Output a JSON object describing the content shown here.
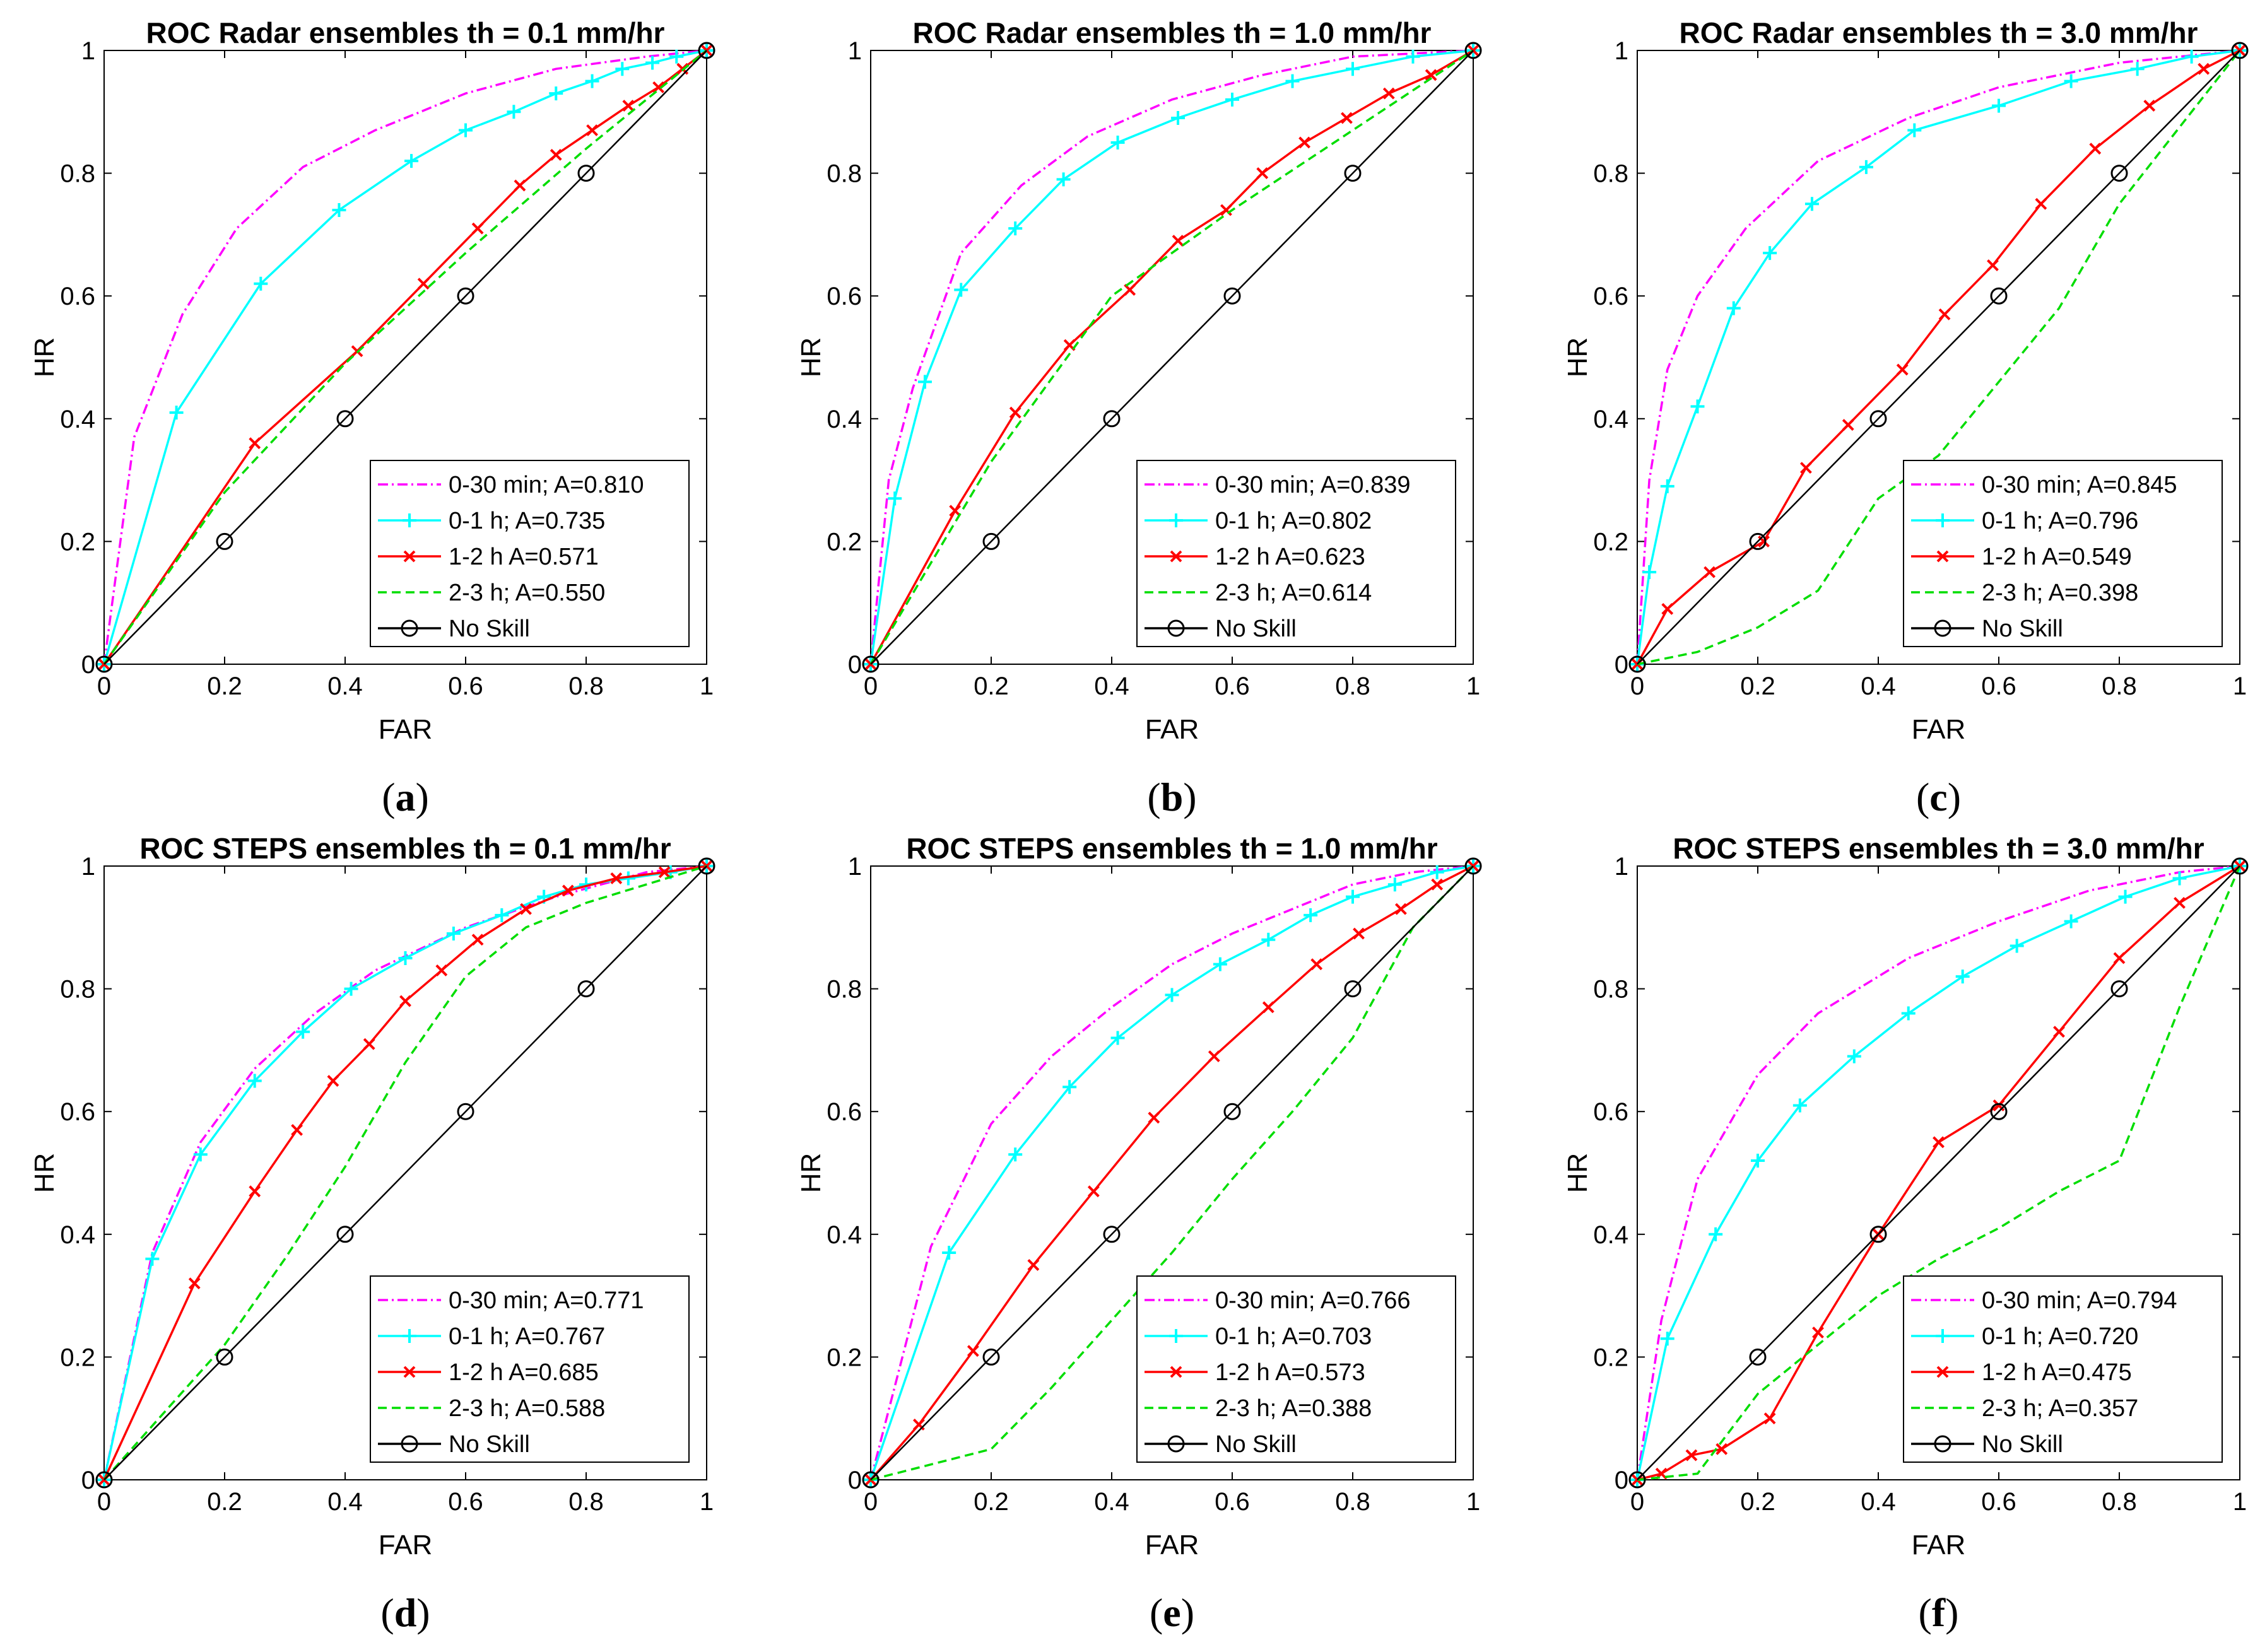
{
  "chart_data": [
    {
      "type": "line",
      "panel_label": "a",
      "title": "ROC Radar ensembles th = 0.1 mm/hr",
      "xlabel": "FAR",
      "ylabel": "HR",
      "xlim": [
        0,
        1
      ],
      "ylim": [
        0,
        1
      ],
      "xticks": [
        "0",
        "0.2",
        "0.4",
        "0.6",
        "0.8",
        "1"
      ],
      "yticks": [
        "0",
        "0.2",
        "0.4",
        "0.6",
        "0.8",
        "1"
      ],
      "legend_position": "bottom-right",
      "series": [
        {
          "name": "0-30 min; A=0.810",
          "color": "#ff00ff",
          "style": "dashdot",
          "marker": "none",
          "x": [
            0,
            0.05,
            0.13,
            0.22,
            0.33,
            0.45,
            0.6,
            0.75,
            0.9,
            1
          ],
          "y": [
            0,
            0.37,
            0.57,
            0.71,
            0.81,
            0.87,
            0.93,
            0.97,
            0.99,
            1
          ]
        },
        {
          "name": "0-1 h; A=0.735",
          "color": "#00ffff",
          "style": "solid",
          "marker": "plus",
          "x": [
            0,
            0.12,
            0.26,
            0.39,
            0.51,
            0.6,
            0.68,
            0.75,
            0.81,
            0.86,
            0.91,
            0.95,
            1
          ],
          "y": [
            0,
            0.41,
            0.62,
            0.74,
            0.82,
            0.87,
            0.9,
            0.93,
            0.95,
            0.97,
            0.98,
            0.99,
            1
          ]
        },
        {
          "name": "1-2 h A=0.571",
          "color": "#ff0000",
          "style": "solid",
          "marker": "x",
          "x": [
            0,
            0.25,
            0.42,
            0.53,
            0.62,
            0.69,
            0.75,
            0.81,
            0.87,
            0.92,
            0.96,
            1
          ],
          "y": [
            0,
            0.36,
            0.51,
            0.62,
            0.71,
            0.78,
            0.83,
            0.87,
            0.91,
            0.94,
            0.97,
            1
          ]
        },
        {
          "name": "2-3 h; A=0.550",
          "color": "#00dd00",
          "style": "dashed",
          "marker": "none",
          "x": [
            0,
            0.2,
            0.4,
            0.6,
            0.8,
            1
          ],
          "y": [
            0,
            0.28,
            0.49,
            0.67,
            0.84,
            1
          ]
        },
        {
          "name": "No Skill",
          "color": "#000000",
          "style": "solid",
          "marker": "circle",
          "x": [
            0,
            0.2,
            0.4,
            0.6,
            0.8,
            1
          ],
          "y": [
            0,
            0.2,
            0.4,
            0.6,
            0.8,
            1
          ]
        }
      ]
    },
    {
      "type": "line",
      "panel_label": "b",
      "title": "ROC Radar ensembles th = 1.0 mm/hr",
      "xlabel": "FAR",
      "ylabel": "HR",
      "xlim": [
        0,
        1
      ],
      "ylim": [
        0,
        1
      ],
      "xticks": [
        "0",
        "0.2",
        "0.4",
        "0.6",
        "0.8",
        "1"
      ],
      "yticks": [
        "0",
        "0.2",
        "0.4",
        "0.6",
        "0.8",
        "1"
      ],
      "legend_position": "bottom-right",
      "series": [
        {
          "name": "0-30 min; A=0.839",
          "color": "#ff00ff",
          "style": "dashdot",
          "marker": "none",
          "x": [
            0,
            0.03,
            0.07,
            0.15,
            0.25,
            0.36,
            0.5,
            0.65,
            0.8,
            1
          ],
          "y": [
            0,
            0.3,
            0.45,
            0.67,
            0.78,
            0.86,
            0.92,
            0.96,
            0.99,
            1
          ]
        },
        {
          "name": "0-1 h; A=0.802",
          "color": "#00ffff",
          "style": "solid",
          "marker": "plus",
          "x": [
            0,
            0.04,
            0.09,
            0.15,
            0.24,
            0.32,
            0.41,
            0.51,
            0.6,
            0.7,
            0.8,
            0.9,
            1
          ],
          "y": [
            0,
            0.27,
            0.46,
            0.61,
            0.71,
            0.79,
            0.85,
            0.89,
            0.92,
            0.95,
            0.97,
            0.99,
            1
          ]
        },
        {
          "name": "1-2 h A=0.623",
          "color": "#ff0000",
          "style": "solid",
          "marker": "x",
          "x": [
            0,
            0.14,
            0.24,
            0.33,
            0.43,
            0.51,
            0.59,
            0.65,
            0.72,
            0.79,
            0.86,
            0.93,
            1
          ],
          "y": [
            0,
            0.25,
            0.41,
            0.52,
            0.61,
            0.69,
            0.74,
            0.8,
            0.85,
            0.89,
            0.93,
            0.96,
            1
          ]
        },
        {
          "name": "2-3 h; A=0.614",
          "color": "#00dd00",
          "style": "dashed",
          "marker": "none",
          "x": [
            0,
            0.2,
            0.4,
            0.6,
            0.8,
            1
          ],
          "y": [
            0,
            0.33,
            0.6,
            0.74,
            0.87,
            1
          ]
        },
        {
          "name": "No Skill",
          "color": "#000000",
          "style": "solid",
          "marker": "circle",
          "x": [
            0,
            0.2,
            0.4,
            0.6,
            0.8,
            1
          ],
          "y": [
            0,
            0.2,
            0.4,
            0.6,
            0.8,
            1
          ]
        }
      ]
    },
    {
      "type": "line",
      "panel_label": "c",
      "title": "ROC Radar ensembles th = 3.0 mm/hr",
      "xlabel": "FAR",
      "ylabel": "HR",
      "xlim": [
        0,
        1
      ],
      "ylim": [
        0,
        1
      ],
      "xticks": [
        "0",
        "0.2",
        "0.4",
        "0.6",
        "0.8",
        "1"
      ],
      "yticks": [
        "0",
        "0.2",
        "0.4",
        "0.6",
        "0.8",
        "1"
      ],
      "legend_position": "bottom-right",
      "series": [
        {
          "name": "0-30 min; A=0.845",
          "color": "#ff00ff",
          "style": "dashdot",
          "marker": "none",
          "x": [
            0,
            0.02,
            0.05,
            0.1,
            0.18,
            0.3,
            0.45,
            0.6,
            0.8,
            1
          ],
          "y": [
            0,
            0.3,
            0.48,
            0.6,
            0.71,
            0.82,
            0.89,
            0.94,
            0.98,
            1
          ]
        },
        {
          "name": "0-1 h; A=0.796",
          "color": "#00ffff",
          "style": "solid",
          "marker": "plus",
          "x": [
            0,
            0.02,
            0.05,
            0.1,
            0.16,
            0.22,
            0.29,
            0.38,
            0.46,
            0.6,
            0.72,
            0.83,
            0.92,
            1
          ],
          "y": [
            0,
            0.15,
            0.29,
            0.42,
            0.58,
            0.67,
            0.75,
            0.81,
            0.87,
            0.91,
            0.95,
            0.97,
            0.99,
            1
          ]
        },
        {
          "name": "1-2 h A=0.549",
          "color": "#ff0000",
          "style": "solid",
          "marker": "x",
          "x": [
            0,
            0.05,
            0.12,
            0.21,
            0.28,
            0.35,
            0.44,
            0.51,
            0.59,
            0.67,
            0.76,
            0.85,
            0.94,
            1
          ],
          "y": [
            0,
            0.09,
            0.15,
            0.2,
            0.32,
            0.39,
            0.48,
            0.57,
            0.65,
            0.75,
            0.84,
            0.91,
            0.97,
            1
          ]
        },
        {
          "name": "2-3 h; A=0.398",
          "color": "#00dd00",
          "style": "dashed",
          "marker": "none",
          "x": [
            0,
            0.1,
            0.2,
            0.3,
            0.4,
            0.5,
            0.6,
            0.7,
            0.8,
            1
          ],
          "y": [
            0,
            0.02,
            0.06,
            0.12,
            0.27,
            0.34,
            0.46,
            0.58,
            0.75,
            1
          ]
        },
        {
          "name": "No Skill",
          "color": "#000000",
          "style": "solid",
          "marker": "circle",
          "x": [
            0,
            0.2,
            0.4,
            0.6,
            0.8,
            1
          ],
          "y": [
            0,
            0.2,
            0.4,
            0.6,
            0.8,
            1
          ]
        }
      ]
    },
    {
      "type": "line",
      "panel_label": "d",
      "title": "ROC STEPS ensembles th = 0.1 mm/hr",
      "xlabel": "FAR",
      "ylabel": "HR",
      "xlim": [
        0,
        1
      ],
      "ylim": [
        0,
        1
      ],
      "xticks": [
        "0",
        "0.2",
        "0.4",
        "0.6",
        "0.8",
        "1"
      ],
      "yticks": [
        "0",
        "0.2",
        "0.4",
        "0.6",
        "0.8",
        "1"
      ],
      "legend_position": "bottom-right",
      "series": [
        {
          "name": "0-30 min; A=0.771",
          "color": "#ff00ff",
          "style": "dashdot",
          "marker": "none",
          "x": [
            0,
            0.08,
            0.16,
            0.25,
            0.35,
            0.45,
            0.6,
            0.75,
            0.9,
            1
          ],
          "y": [
            0,
            0.37,
            0.55,
            0.67,
            0.76,
            0.83,
            0.9,
            0.95,
            0.99,
            1
          ]
        },
        {
          "name": "0-1 h; A=0.767",
          "color": "#00ffff",
          "style": "solid",
          "marker": "plus",
          "x": [
            0,
            0.08,
            0.16,
            0.25,
            0.33,
            0.41,
            0.5,
            0.58,
            0.66,
            0.73,
            0.8,
            0.87,
            0.94,
            1
          ],
          "y": [
            0,
            0.36,
            0.53,
            0.65,
            0.73,
            0.8,
            0.85,
            0.89,
            0.92,
            0.95,
            0.97,
            0.98,
            0.99,
            1
          ]
        },
        {
          "name": "1-2 h A=0.685",
          "color": "#ff0000",
          "style": "solid",
          "marker": "x",
          "x": [
            0,
            0.15,
            0.25,
            0.32,
            0.38,
            0.44,
            0.5,
            0.56,
            0.62,
            0.7,
            0.77,
            0.85,
            0.93,
            1
          ],
          "y": [
            0,
            0.32,
            0.47,
            0.57,
            0.65,
            0.71,
            0.78,
            0.83,
            0.88,
            0.93,
            0.96,
            0.98,
            0.99,
            1
          ]
        },
        {
          "name": "2-3 h; A=0.588",
          "color": "#00dd00",
          "style": "dashed",
          "marker": "none",
          "x": [
            0,
            0.2,
            0.3,
            0.4,
            0.5,
            0.6,
            0.7,
            0.8,
            0.9,
            1
          ],
          "y": [
            0,
            0.22,
            0.36,
            0.51,
            0.68,
            0.82,
            0.9,
            0.94,
            0.97,
            1
          ]
        },
        {
          "name": "No Skill",
          "color": "#000000",
          "style": "solid",
          "marker": "circle",
          "x": [
            0,
            0.2,
            0.4,
            0.6,
            0.8,
            1
          ],
          "y": [
            0,
            0.2,
            0.4,
            0.6,
            0.8,
            1
          ]
        }
      ]
    },
    {
      "type": "line",
      "panel_label": "e",
      "title": "ROC STEPS ensembles th = 1.0 mm/hr",
      "xlabel": "FAR",
      "ylabel": "HR",
      "xlim": [
        0,
        1
      ],
      "ylim": [
        0,
        1
      ],
      "xticks": [
        "0",
        "0.2",
        "0.4",
        "0.6",
        "0.8",
        "1"
      ],
      "yticks": [
        "0",
        "0.2",
        "0.4",
        "0.6",
        "0.8",
        "1"
      ],
      "legend_position": "bottom-right",
      "series": [
        {
          "name": "0-30 min; A=0.766",
          "color": "#ff00ff",
          "style": "dashdot",
          "marker": "none",
          "x": [
            0,
            0.1,
            0.2,
            0.3,
            0.4,
            0.5,
            0.6,
            0.7,
            0.8,
            0.9,
            1
          ],
          "y": [
            0,
            0.38,
            0.58,
            0.69,
            0.77,
            0.84,
            0.89,
            0.93,
            0.97,
            0.99,
            1
          ]
        },
        {
          "name": "0-1 h; A=0.703",
          "color": "#00ffff",
          "style": "solid",
          "marker": "plus",
          "x": [
            0,
            0.13,
            0.24,
            0.33,
            0.41,
            0.5,
            0.58,
            0.66,
            0.73,
            0.8,
            0.87,
            0.94,
            1
          ],
          "y": [
            0,
            0.37,
            0.53,
            0.64,
            0.72,
            0.79,
            0.84,
            0.88,
            0.92,
            0.95,
            0.97,
            0.99,
            1
          ]
        },
        {
          "name": "1-2 h A=0.573",
          "color": "#ff0000",
          "style": "solid",
          "marker": "x",
          "x": [
            0,
            0.08,
            0.17,
            0.27,
            0.37,
            0.47,
            0.57,
            0.66,
            0.74,
            0.81,
            0.88,
            0.94,
            1
          ],
          "y": [
            0,
            0.09,
            0.21,
            0.35,
            0.47,
            0.59,
            0.69,
            0.77,
            0.84,
            0.89,
            0.93,
            0.97,
            1
          ]
        },
        {
          "name": "2-3 h; A=0.388",
          "color": "#00dd00",
          "style": "dashed",
          "marker": "none",
          "x": [
            0,
            0.2,
            0.3,
            0.4,
            0.5,
            0.6,
            0.7,
            0.8,
            0.9,
            1
          ],
          "y": [
            0,
            0.05,
            0.15,
            0.26,
            0.37,
            0.49,
            0.6,
            0.72,
            0.9,
            1
          ]
        },
        {
          "name": "No Skill",
          "color": "#000000",
          "style": "solid",
          "marker": "circle",
          "x": [
            0,
            0.2,
            0.4,
            0.6,
            0.8,
            1
          ],
          "y": [
            0,
            0.2,
            0.4,
            0.6,
            0.8,
            1
          ]
        }
      ]
    },
    {
      "type": "line",
      "panel_label": "f",
      "title": "ROC STEPS ensembles th = 3.0 mm/hr",
      "xlabel": "FAR",
      "ylabel": "HR",
      "xlim": [
        0,
        1
      ],
      "ylim": [
        0,
        1
      ],
      "xticks": [
        "0",
        "0.2",
        "0.4",
        "0.6",
        "0.8",
        "1"
      ],
      "yticks": [
        "0",
        "0.2",
        "0.4",
        "0.6",
        "0.8",
        "1"
      ],
      "legend_position": "bottom-right",
      "series": [
        {
          "name": "0-30 min; A=0.794",
          "color": "#ff00ff",
          "style": "dashdot",
          "marker": "none",
          "x": [
            0,
            0.04,
            0.1,
            0.2,
            0.3,
            0.45,
            0.6,
            0.75,
            0.9,
            1
          ],
          "y": [
            0,
            0.26,
            0.49,
            0.66,
            0.76,
            0.85,
            0.91,
            0.96,
            0.99,
            1
          ]
        },
        {
          "name": "0-1 h; A=0.720",
          "color": "#00ffff",
          "style": "solid",
          "marker": "plus",
          "x": [
            0,
            0.05,
            0.13,
            0.2,
            0.27,
            0.36,
            0.45,
            0.54,
            0.63,
            0.72,
            0.81,
            0.9,
            1
          ],
          "y": [
            0,
            0.23,
            0.4,
            0.52,
            0.61,
            0.69,
            0.76,
            0.82,
            0.87,
            0.91,
            0.95,
            0.98,
            1
          ]
        },
        {
          "name": "1-2 h A=0.475",
          "color": "#ff0000",
          "style": "solid",
          "marker": "x",
          "x": [
            0,
            0.04,
            0.09,
            0.14,
            0.22,
            0.3,
            0.4,
            0.5,
            0.6,
            0.7,
            0.8,
            0.9,
            1
          ],
          "y": [
            0,
            0.01,
            0.04,
            0.05,
            0.1,
            0.24,
            0.4,
            0.55,
            0.61,
            0.73,
            0.85,
            0.94,
            1
          ]
        },
        {
          "name": "2-3 h; A=0.357",
          "color": "#00dd00",
          "style": "dashed",
          "marker": "none",
          "x": [
            0,
            0.1,
            0.2,
            0.3,
            0.4,
            0.5,
            0.6,
            0.7,
            0.8,
            0.9,
            1
          ],
          "y": [
            0,
            0.01,
            0.14,
            0.22,
            0.3,
            0.36,
            0.41,
            0.47,
            0.52,
            0.77,
            1
          ]
        },
        {
          "name": "No Skill",
          "color": "#000000",
          "style": "solid",
          "marker": "circle",
          "x": [
            0,
            0.2,
            0.4,
            0.6,
            0.8,
            1
          ],
          "y": [
            0,
            0.2,
            0.4,
            0.6,
            0.8,
            1
          ]
        }
      ]
    }
  ]
}
